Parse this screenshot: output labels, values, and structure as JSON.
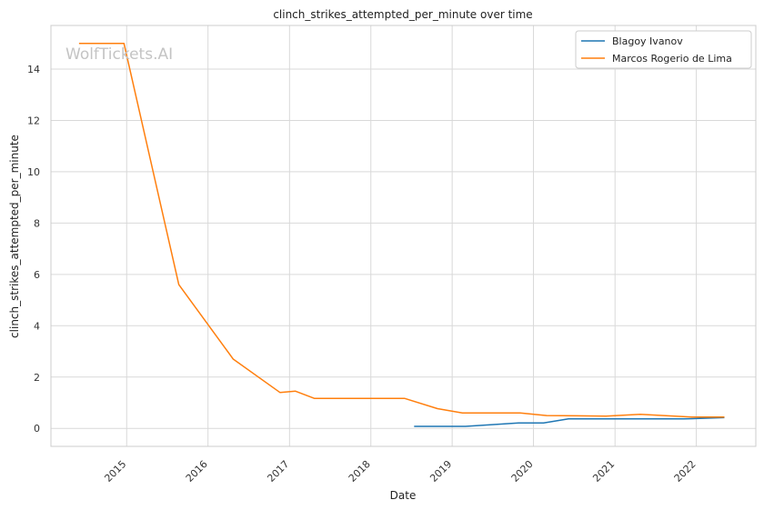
{
  "watermark": "WolfTickets.AI",
  "chart_data": {
    "type": "line",
    "title": "clinch_strikes_attempted_per_minute over time",
    "xlabel": "Date",
    "ylabel": "clinch_strikes_attempted_per_minute",
    "x_ticks": [
      "2015",
      "2016",
      "2017",
      "2018",
      "2019",
      "2020",
      "2021",
      "2022"
    ],
    "y_ticks": [
      0,
      2,
      4,
      6,
      8,
      10,
      12,
      14
    ],
    "xlim": [
      "2014-01-26",
      "2022-09-25"
    ],
    "ylim": [
      -0.7,
      15.7
    ],
    "grid": true,
    "legend_position": "top-right",
    "series": [
      {
        "name": "Blagoy Ivanov",
        "color": "#1f77b4",
        "points": [
          {
            "x": "2018-07-14",
            "y": 0.08
          },
          {
            "x": "2019-03-02",
            "y": 0.08
          },
          {
            "x": "2019-10-26",
            "y": 0.21
          },
          {
            "x": "2020-02-15",
            "y": 0.21
          },
          {
            "x": "2020-06-06",
            "y": 0.37
          },
          {
            "x": "2021-11-06",
            "y": 0.37
          },
          {
            "x": "2022-05-07",
            "y": 0.42
          }
        ]
      },
      {
        "name": "Marcos Rogerio de Lima",
        "color": "#ff7f0e",
        "points": [
          {
            "x": "2014-06-01",
            "y": 15.0
          },
          {
            "x": "2014-12-20",
            "y": 15.0
          },
          {
            "x": "2015-08-23",
            "y": 5.6
          },
          {
            "x": "2016-04-23",
            "y": 2.7
          },
          {
            "x": "2016-11-19",
            "y": 1.4
          },
          {
            "x": "2017-01-28",
            "y": 1.45
          },
          {
            "x": "2017-04-22",
            "y": 1.17
          },
          {
            "x": "2018-06-01",
            "y": 1.17
          },
          {
            "x": "2018-10-27",
            "y": 0.77
          },
          {
            "x": "2019-02-16",
            "y": 0.6
          },
          {
            "x": "2019-11-02",
            "y": 0.6
          },
          {
            "x": "2020-02-29",
            "y": 0.5
          },
          {
            "x": "2020-11-21",
            "y": 0.48
          },
          {
            "x": "2021-04-24",
            "y": 0.55
          },
          {
            "x": "2021-12-11",
            "y": 0.44
          },
          {
            "x": "2022-05-07",
            "y": 0.44
          }
        ]
      }
    ]
  }
}
